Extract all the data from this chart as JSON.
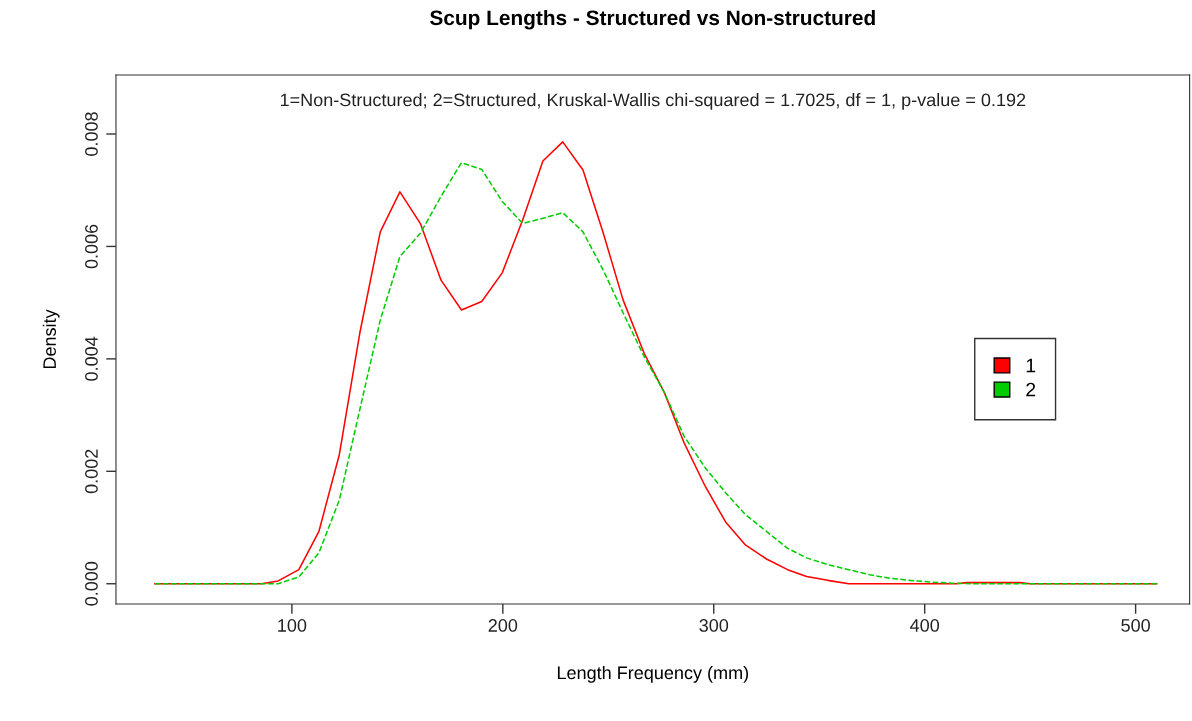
{
  "chart_data": {
    "type": "line",
    "title": "Scup Lengths - Structured vs Non-structured",
    "xlabel": "Length Frequency (mm)",
    "ylabel": "Density",
    "annotations": [
      "1=Non-Structured; 2=Structured, Kruskal-Wallis chi-squared = 1.7025, df = 1, p-value = 0.192"
    ],
    "xlim": [
      16.6,
      525.6
    ],
    "ylim": [
      -0.00036,
      0.00905
    ],
    "xticks": [
      100,
      200,
      300,
      400,
      500
    ],
    "yticks": [
      {
        "value": 0,
        "label": "0.000"
      },
      {
        "value": 0.002,
        "label": "0.002"
      },
      {
        "value": 0.004,
        "label": "0.004"
      },
      {
        "value": 0.006,
        "label": "0.006"
      },
      {
        "value": 0.008,
        "label": "0.008"
      }
    ],
    "grid": false,
    "legend": "right",
    "marker": "none",
    "series": [
      {
        "name": "1",
        "color": "#ff0000",
        "line_style": "solid",
        "x": [
          35,
          85.6,
          93.5,
          103.3,
          112.8,
          122.5,
          132.2,
          141.9,
          151.2,
          161,
          170.7,
          180.4,
          190,
          199.7,
          209.4,
          219,
          228.4,
          238,
          247.6,
          257,
          267,
          276.6,
          286,
          296,
          305.6,
          315,
          325,
          335,
          344,
          354,
          364,
          415,
          420,
          445,
          450,
          510
        ],
        "values": [
          0,
          0,
          5e-05,
          0.00025,
          0.00093,
          0.0023,
          0.00446,
          0.00626,
          0.00697,
          0.0064,
          0.0054,
          0.00487,
          0.00502,
          0.00553,
          0.00647,
          0.00752,
          0.00786,
          0.00736,
          0.00624,
          0.00505,
          0.0041,
          0.0034,
          0.0025,
          0.00173,
          0.0011,
          0.00069,
          0.00044,
          0.00025,
          0.00013,
          6e-05,
          0,
          0,
          2e-05,
          2e-05,
          0,
          0
        ]
      },
      {
        "name": "2",
        "color": "#00cd00",
        "line_style": "dashed",
        "x": [
          35,
          85.6,
          93.5,
          103.3,
          112.8,
          122.5,
          132.2,
          141.9,
          151.2,
          161,
          170.7,
          180.4,
          190,
          199.7,
          209.4,
          219,
          228.4,
          238,
          247.6,
          257,
          267,
          276.6,
          286,
          296,
          305.6,
          315,
          325,
          335,
          344,
          354,
          364,
          374,
          383,
          393,
          403,
          413,
          422,
          510
        ],
        "values": [
          0,
          0,
          0,
          0.00012,
          0.00055,
          0.00149,
          0.0031,
          0.00469,
          0.00582,
          0.00624,
          0.00689,
          0.00749,
          0.00737,
          0.0068,
          0.00641,
          0.0065,
          0.0066,
          0.00626,
          0.00558,
          0.00482,
          0.00404,
          0.0034,
          0.00262,
          0.00206,
          0.00162,
          0.00123,
          0.00093,
          0.00063,
          0.00046,
          0.00034,
          0.00025,
          0.00016,
          0.0001,
          6e-05,
          3e-05,
          1e-05,
          0,
          0
        ]
      }
    ]
  }
}
